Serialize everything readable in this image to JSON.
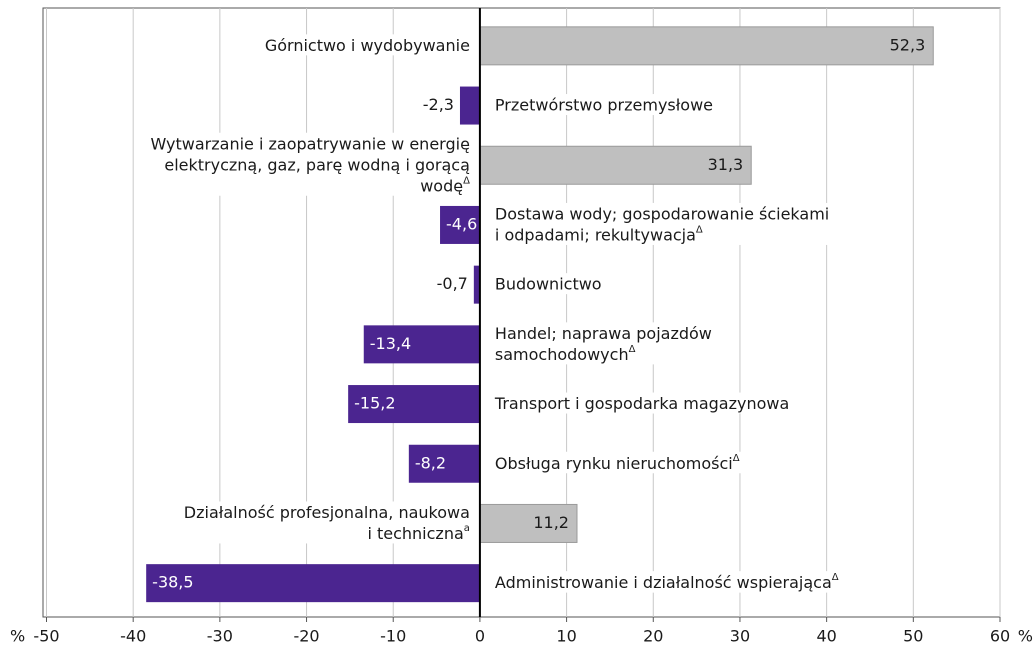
{
  "chart_data": {
    "type": "bar",
    "orientation": "horizontal",
    "categories": [
      [
        "Górnictwo i wydobywanie"
      ],
      [
        "Przetwórstwo przemysłowe"
      ],
      [
        "Wytwarzanie i zaopatrywanie  w energię",
        "elektryczną, gaz,  parę wodną i gorącą",
        "wodę"
      ],
      [
        "Dostawa wody; gospodarowanie ściekami",
        "i odpadami; rekultywacja"
      ],
      [
        "Budownictwo"
      ],
      [
        "Handel; naprawa pojazdów",
        "samochodowych"
      ],
      [
        "Transport i gospodarka magazynowa"
      ],
      [
        "Obsługa rynku nieruchomości"
      ],
      [
        "Działalność profesjonalna, naukowa",
        "i techniczna"
      ],
      [
        "Administrowanie i działalność wspierająca"
      ]
    ],
    "category_notes": [
      null,
      null,
      "Δ",
      "Δ",
      null,
      "Δ",
      null,
      "Δ",
      "a",
      "Δ"
    ],
    "values": [
      52.3,
      -2.3,
      31.3,
      -4.6,
      -0.7,
      -13.4,
      -15.2,
      -8.2,
      11.2,
      -38.5
    ],
    "value_labels": [
      "52,3",
      "-2,3",
      "31,3",
      "-4,6",
      "-0,7",
      "-13,4",
      "-15,2",
      "-8,2",
      "11,2",
      "-38,5"
    ],
    "colors": {
      "positive": "#bfbfbf",
      "negative": "#4b2590"
    },
    "xlim": [
      -50,
      60
    ],
    "xticks": [
      -50,
      -40,
      -30,
      -20,
      -10,
      0,
      10,
      20,
      30,
      40,
      50,
      60
    ],
    "x_unit": "%",
    "grid": true
  }
}
